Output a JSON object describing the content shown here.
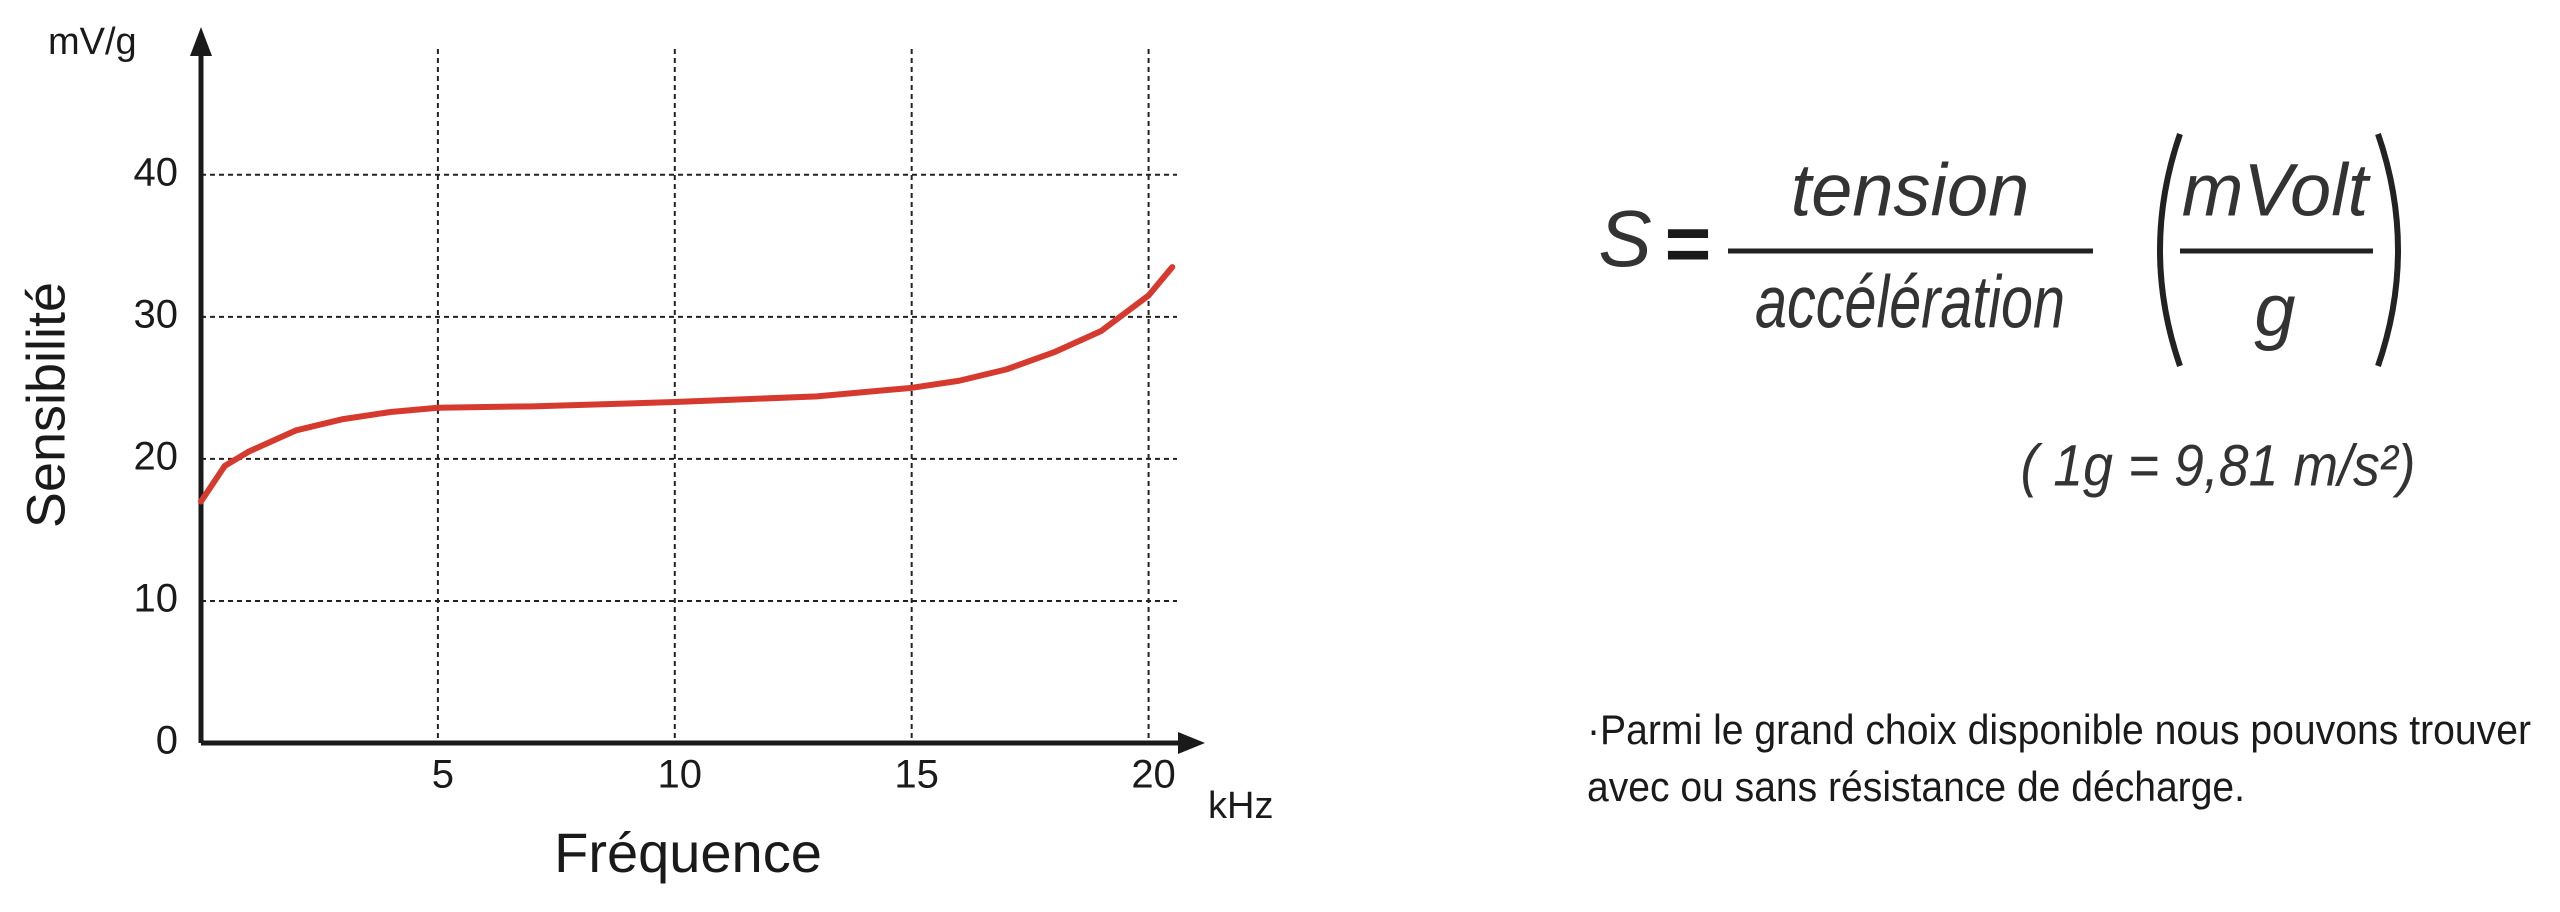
{
  "chart_data": {
    "type": "line",
    "y_unit": "mV/g",
    "y_label": "Sensibilité",
    "x_label": "Fréquence",
    "x_unit": "kHz",
    "x": [
      0,
      0.5,
      1,
      2,
      3,
      4,
      5,
      7,
      10,
      13,
      15,
      16,
      17,
      18,
      19,
      20,
      20.5
    ],
    "series": [
      {
        "name": "Sensibilité",
        "color": "#d63a2f",
        "values": [
          17,
          19.5,
          20.5,
          22,
          22.8,
          23.3,
          23.6,
          23.7,
          24,
          24.4,
          25,
          25.5,
          26.3,
          27.5,
          29,
          31.5,
          33.5
        ]
      }
    ],
    "xlim": [
      0,
      20.6
    ],
    "ylim": [
      0,
      48.5
    ],
    "xticks": [
      5,
      10,
      15,
      20
    ],
    "yticks": [
      0,
      10,
      20,
      30,
      40
    ],
    "grid": true
  },
  "formula": {
    "lhs": "S",
    "equals": "=",
    "numerator": "tension",
    "denominator": "accélération",
    "unit_numerator": "mVolt",
    "unit_denominator": "g",
    "note": "( 1g = 9,81 m/s²)"
  },
  "text": [
    "·Parmi le grand choix disponible nous pouvons trouver",
    "avec ou sans résistance de décharge."
  ]
}
